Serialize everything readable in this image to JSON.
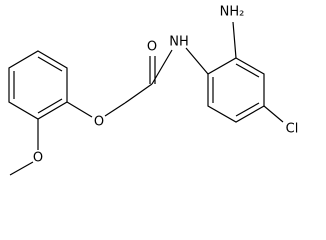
{
  "atoms": [
    {
      "label": "O"
    },
    {
      "label": "NH"
    },
    {
      "label": "NH₂"
    },
    {
      "label": "Cl"
    },
    {
      "label": "O"
    },
    {
      "label": "O"
    }
  ]
}
